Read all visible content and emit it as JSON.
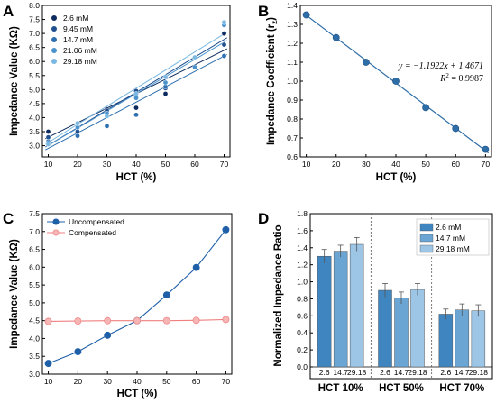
{
  "chart_data": [
    {
      "type": "scatter",
      "panel_label": "A",
      "xlabel": "HCT (%)",
      "ylabel": "Impedance Value (KΩ)",
      "xlim": [
        8,
        72
      ],
      "ylim": [
        2.6,
        8.0
      ],
      "xticks": [
        10,
        20,
        30,
        40,
        50,
        60,
        70
      ],
      "yticks": [
        3.0,
        3.5,
        4.0,
        4.5,
        5.0,
        5.5,
        6.0,
        6.5,
        7.0,
        7.5,
        8.0
      ],
      "legend_position": "top-left",
      "series": [
        {
          "name": "2.6 mM",
          "color": "#0d2b5e",
          "x": [
            10,
            20,
            30,
            40,
            50,
            70
          ],
          "y": [
            3.5,
            3.8,
            4.3,
            4.35,
            4.85,
            7.0
          ],
          "fit": [
            [
              9,
              3.25
            ],
            [
              71,
              6.45
            ]
          ]
        },
        {
          "name": "9.45 mM",
          "color": "#1f4f8f",
          "x": [
            10,
            20,
            30,
            40,
            50,
            70
          ],
          "y": [
            3.3,
            3.5,
            4.25,
            4.95,
            5.05,
            6.6
          ],
          "fit": [
            [
              9,
              2.95
            ],
            [
              71,
              6.85
            ]
          ]
        },
        {
          "name": "14.7 mM",
          "color": "#2e6fb0",
          "x": [
            10,
            20,
            30,
            40,
            50,
            70
          ],
          "y": [
            3.15,
            3.35,
            3.7,
            4.1,
            5.1,
            6.2
          ],
          "fit": [
            [
              9,
              2.85
            ],
            [
              71,
              6.25
            ]
          ]
        },
        {
          "name": "21.06 mM",
          "color": "#4a93cc",
          "x": [
            10,
            20,
            30,
            40,
            50,
            60,
            70
          ],
          "y": [
            3.1,
            3.65,
            4.15,
            4.7,
            5.25,
            5.8,
            7.3
          ],
          "fit": [
            [
              9,
              2.95
            ],
            [
              71,
              6.75
            ]
          ]
        },
        {
          "name": "29.18 mM",
          "color": "#7ab8e2",
          "x": [
            10,
            20,
            30,
            40,
            50,
            60,
            70
          ],
          "y": [
            3.05,
            3.8,
            4.05,
            4.85,
            5.45,
            6.15,
            7.4
          ],
          "fit": [
            [
              9,
              3.05
            ],
            [
              71,
              7.05
            ]
          ]
        }
      ]
    },
    {
      "type": "line",
      "panel_label": "B",
      "xlabel": "HCT (%)",
      "ylabel": "Impedance Coefficient (r",
      "ylabel_sub": "z",
      "ylabel_close": ")",
      "xlim": [
        8,
        72
      ],
      "ylim": [
        0.6,
        1.4
      ],
      "xticks": [
        10,
        20,
        30,
        40,
        50,
        60,
        70
      ],
      "yticks": [
        0.6,
        0.7,
        0.8,
        0.9,
        1.0,
        1.1,
        1.2,
        1.3,
        1.4
      ],
      "color": "#2d6da8",
      "x": [
        10,
        20,
        30,
        40,
        50,
        60,
        70
      ],
      "y": [
        1.35,
        1.23,
        1.1,
        1.0,
        0.86,
        0.75,
        0.64
      ],
      "fit": [
        [
          9,
          1.3598
        ],
        [
          71,
          0.6207
        ]
      ],
      "equation": "y = −1.1922x + 1.4671",
      "r2_label": "R",
      "r2_value": " = 0.9987"
    },
    {
      "type": "line",
      "panel_label": "C",
      "xlabel": "HCT (%)",
      "ylabel": "Impedance Value (KΩ)",
      "xlim": [
        8,
        72
      ],
      "ylim": [
        3.0,
        7.5
      ],
      "xticks": [
        10,
        20,
        30,
        40,
        50,
        60,
        70
      ],
      "yticks": [
        3.0,
        3.5,
        4.0,
        4.5,
        5.0,
        5.5,
        6.0,
        6.5,
        7.0,
        7.5
      ],
      "legend_position": "top-left",
      "series": [
        {
          "name": "Uncompensated",
          "color": "#1f5fa8",
          "marker": "#1f5fa8",
          "x": [
            10,
            20,
            30,
            40,
            50,
            60,
            70
          ],
          "y": [
            3.3,
            3.63,
            4.09,
            4.5,
            5.22,
            5.99,
            7.05
          ]
        },
        {
          "name": "Compensated",
          "color": "#f08080",
          "marker": "#f5b5b5",
          "x": [
            10,
            20,
            30,
            40,
            50,
            60,
            70
          ],
          "y": [
            4.48,
            4.49,
            4.5,
            4.5,
            4.5,
            4.51,
            4.53
          ]
        }
      ]
    },
    {
      "type": "bar",
      "panel_label": "D",
      "ylabel": "Normalized Impedance Ratio",
      "ylim": [
        0,
        1.8
      ],
      "yticks": [
        0.0,
        0.2,
        0.4,
        0.6,
        0.8,
        1.0,
        1.2,
        1.4,
        1.6,
        1.8
      ],
      "legend_position": "top-right",
      "groups": [
        "HCT 10%",
        "HCT 50%",
        "HCT 70%"
      ],
      "categories": [
        "2.6",
        "14.7",
        "29.18"
      ],
      "series": [
        {
          "name": "2.6 mM",
          "color": "#3f86c0",
          "values": [
            1.3,
            0.9,
            0.62
          ],
          "errors": [
            0.08,
            0.08,
            0.06
          ]
        },
        {
          "name": "14.7 mM",
          "color": "#6aa5d4",
          "values": [
            1.36,
            0.81,
            0.67
          ],
          "errors": [
            0.07,
            0.07,
            0.07
          ]
        },
        {
          "name": "29.18 mM",
          "color": "#9cc5e6",
          "values": [
            1.44,
            0.91,
            0.66
          ],
          "errors": [
            0.08,
            0.07,
            0.07
          ]
        }
      ]
    }
  ]
}
